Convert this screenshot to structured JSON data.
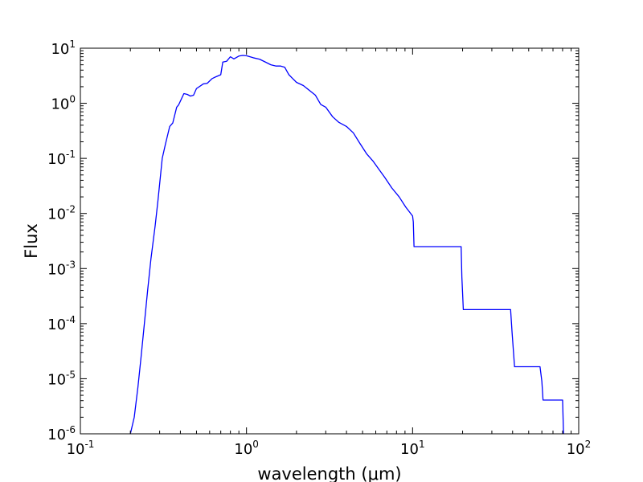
{
  "chart_data": {
    "type": "line",
    "xlabel": "wavelength (μm)",
    "ylabel": "Flux",
    "xscale": "log",
    "yscale": "log",
    "xlim": [
      0.1,
      100
    ],
    "ylim": [
      1e-06,
      10
    ],
    "grid": false,
    "line_color": "#0000ff",
    "x_ticks": [
      {
        "base": "10",
        "exp": "-1"
      },
      {
        "base": "10",
        "exp": "0"
      },
      {
        "base": "10",
        "exp": "1"
      },
      {
        "base": "10",
        "exp": "2"
      }
    ],
    "y_ticks": [
      {
        "base": "10",
        "exp": "-6"
      },
      {
        "base": "10",
        "exp": "-5"
      },
      {
        "base": "10",
        "exp": "-4"
      },
      {
        "base": "10",
        "exp": "-3"
      },
      {
        "base": "10",
        "exp": "-2"
      },
      {
        "base": "10",
        "exp": "-1"
      },
      {
        "base": "10",
        "exp": "0"
      },
      {
        "base": "10",
        "exp": "1"
      }
    ],
    "series": [
      {
        "x": [
          0.2,
          0.211,
          0.222,
          0.232,
          0.242,
          0.254,
          0.266,
          0.282,
          0.293,
          0.311,
          0.325,
          0.345,
          0.36,
          0.38,
          0.39,
          0.42,
          0.44,
          0.46,
          0.48,
          0.5,
          0.55,
          0.58,
          0.62,
          0.65,
          0.7,
          0.72,
          0.76,
          0.8,
          0.84,
          0.9,
          0.95,
          1.0,
          1.1,
          1.2,
          1.3,
          1.4,
          1.5,
          1.6,
          1.7,
          1.8,
          1.9,
          2.0,
          2.2,
          2.4,
          2.6,
          2.8,
          3.0,
          3.3,
          3.6,
          4.0,
          4.4,
          4.8,
          5.3,
          5.8,
          6.3,
          6.8,
          7.5,
          8.3,
          9.1,
          10.0,
          10.1,
          10.2,
          19.6,
          19.8,
          20.2,
          38.9,
          39.7,
          41.1,
          58.5,
          60.0,
          61.0,
          80.0,
          81.0
        ],
        "y": [
          1e-06,
          2e-06,
          7e-06,
          2.5e-05,
          9e-05,
          0.0004,
          0.0015,
          0.006,
          0.017,
          0.1,
          0.18,
          0.38,
          0.44,
          0.85,
          0.93,
          1.5,
          1.45,
          1.35,
          1.4,
          1.85,
          2.25,
          2.3,
          2.8,
          3.0,
          3.3,
          5.6,
          5.8,
          7.0,
          6.4,
          7.2,
          7.4,
          7.3,
          6.7,
          6.3,
          5.6,
          5.0,
          4.75,
          4.75,
          4.5,
          3.3,
          2.8,
          2.4,
          2.1,
          1.7,
          1.4,
          0.95,
          0.85,
          0.57,
          0.45,
          0.38,
          0.29,
          0.19,
          0.12,
          0.088,
          0.062,
          0.045,
          0.029,
          0.02,
          0.013,
          0.009,
          0.007,
          0.0025,
          0.0025,
          0.0007,
          0.00018,
          0.00018,
          7e-05,
          1.65e-05,
          1.65e-05,
          9e-06,
          4.1e-06,
          4.1e-06,
          1e-06
        ]
      }
    ]
  }
}
